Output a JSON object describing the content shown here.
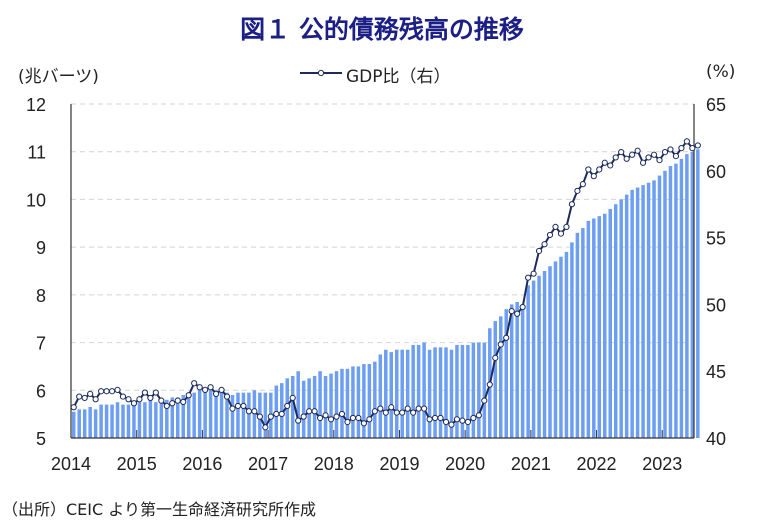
{
  "title": "図１ 公的債務残高の推移",
  "source": "（出所）CEIC より第一生命経済研究所作成",
  "chart_data": {
    "type": "bar+line",
    "title": "図１ 公的債務残高の推移",
    "ylabel_left": "(兆バーツ)",
    "ylabel_right": "(%)",
    "ylim_left": [
      5,
      12
    ],
    "ylim_right": [
      40,
      65
    ],
    "yticks_left": [
      "5",
      "6",
      "7",
      "8",
      "9",
      "10",
      "11",
      "12"
    ],
    "yticks_right": [
      "40",
      "45",
      "50",
      "55",
      "60",
      "65"
    ],
    "xticks": [
      "2014",
      "2015",
      "2016",
      "2017",
      "2018",
      "2019",
      "2020",
      "2021",
      "2022",
      "2023"
    ],
    "x_start": "2014-01",
    "frequency": "monthly",
    "grid": "horizontal dashed",
    "legend_position": "top-center",
    "colors": {
      "bars": "#6e9ef2",
      "line": "#1c2b5c",
      "title": "#1b1f86"
    },
    "series": [
      {
        "name": "",
        "type": "bar",
        "axis": "left",
        "values": [
          5.55,
          5.6,
          5.6,
          5.65,
          5.6,
          5.7,
          5.7,
          5.7,
          5.75,
          5.7,
          5.7,
          5.75,
          5.75,
          5.75,
          5.8,
          5.75,
          5.75,
          5.8,
          5.85,
          5.85,
          5.9,
          5.9,
          5.95,
          6.05,
          6.05,
          6.0,
          6.0,
          5.95,
          5.95,
          5.9,
          5.95,
          5.95,
          5.95,
          6.0,
          5.95,
          5.95,
          5.95,
          6.1,
          6.15,
          6.25,
          6.3,
          6.4,
          6.2,
          6.25,
          6.3,
          6.4,
          6.3,
          6.35,
          6.4,
          6.45,
          6.45,
          6.5,
          6.5,
          6.55,
          6.55,
          6.6,
          6.75,
          6.85,
          6.8,
          6.85,
          6.85,
          6.85,
          6.95,
          6.95,
          7.0,
          6.85,
          6.9,
          6.9,
          6.9,
          6.85,
          6.95,
          6.95,
          6.95,
          7.0,
          7.0,
          7.0,
          7.3,
          7.45,
          7.55,
          7.7,
          7.8,
          7.85,
          7.8,
          8.2,
          8.3,
          8.4,
          8.5,
          8.6,
          8.7,
          8.8,
          8.9,
          9.1,
          9.3,
          9.4,
          9.55,
          9.6,
          9.65,
          9.7,
          9.8,
          9.9,
          10.0,
          10.1,
          10.2,
          10.25,
          10.3,
          10.35,
          10.4,
          10.5,
          10.6,
          10.7,
          10.75,
          10.85,
          10.95,
          11.0,
          11.05
        ]
      },
      {
        "name": "GDP比（右）",
        "type": "line",
        "axis": "right",
        "values": [
          42.3,
          43.1,
          43.0,
          43.3,
          42.9,
          43.5,
          43.5,
          43.5,
          43.6,
          43.1,
          42.9,
          42.6,
          42.9,
          43.4,
          43.0,
          43.4,
          42.8,
          42.4,
          42.6,
          42.8,
          42.7,
          43.2,
          44.1,
          43.8,
          43.6,
          43.8,
          43.3,
          43.6,
          43.1,
          42.2,
          42.4,
          42.4,
          42.0,
          42.0,
          41.6,
          40.8,
          41.6,
          41.8,
          41.8,
          42.4,
          43.0,
          41.3,
          41.6,
          42.0,
          42.0,
          41.5,
          41.7,
          41.4,
          41.6,
          41.8,
          41.2,
          41.5,
          41.5,
          41.1,
          41.4,
          42.0,
          42.2,
          41.9,
          42.3,
          41.9,
          41.9,
          42.2,
          41.9,
          42.2,
          42.2,
          41.4,
          41.5,
          41.5,
          41.2,
          41.0,
          41.4,
          41.3,
          41.2,
          41.5,
          41.7,
          42.8,
          44.0,
          46.0,
          47.0,
          47.5,
          49.5,
          49.3,
          49.8,
          52.0,
          52.3,
          54.0,
          54.5,
          55.2,
          55.8,
          55.3,
          55.8,
          57.5,
          58.5,
          59.0,
          60.1,
          59.6,
          60.1,
          60.6,
          60.4,
          61.0,
          61.4,
          60.9,
          61.2,
          61.5,
          60.6,
          61.0,
          61.2,
          60.8,
          61.4,
          61.6,
          61.1,
          61.7,
          62.2,
          61.7,
          61.9
        ]
      }
    ]
  }
}
